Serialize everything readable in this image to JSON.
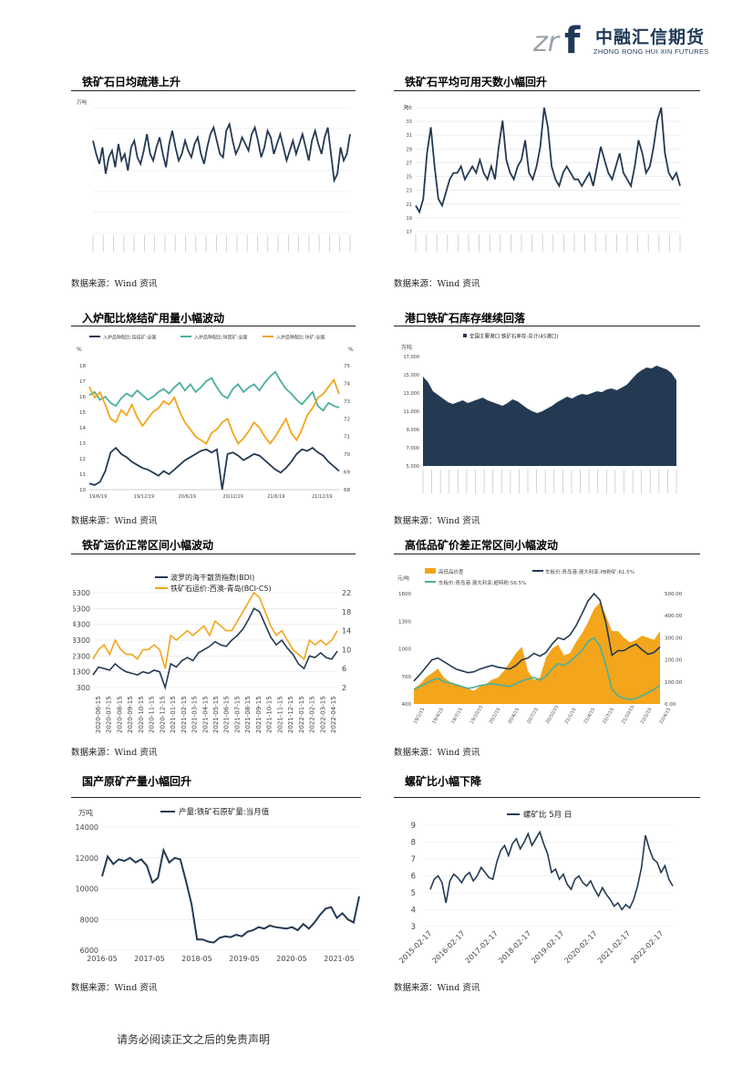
{
  "header": {
    "logo_cn": "中融汇信期货",
    "logo_en": "ZHONG RONG HUI XIN FUTURES",
    "logo_mark": "zrf"
  },
  "footer": {
    "disclaimer": "请务必阅读正文之后的免责声明"
  },
  "panels": [
    {
      "title": "铁矿石日均疏港上升",
      "source": "数据来源：Wind 资讯"
    },
    {
      "title": "铁矿石平均可用天数小幅回升",
      "source": "数据来源：Wind 资讯"
    },
    {
      "title": "入炉配比烧结矿用量小幅波动",
      "source": "数据来源：Wind 资讯"
    },
    {
      "title": "港口铁矿石库存继续回落",
      "source": "数据来源：Wind 资讯"
    },
    {
      "title": "铁矿运价正常区间小幅波动",
      "source": "数据来源：Wind 资讯"
    },
    {
      "title": "高低品矿价差正常区间小幅波动",
      "source": "数据来源：Wind 资讯"
    },
    {
      "title": "国产原矿产量小幅回升",
      "source": "数据来源：Wind 资讯"
    },
    {
      "title": "螺矿比小幅下降",
      "source": "数据来源：Wind 资讯"
    }
  ],
  "colors": {
    "navy": "#243a53",
    "teal": "#4aaf9e",
    "orange": "#f3a51b",
    "grid": "#e4e4e4"
  },
  "chart_data": [
    {
      "type": "line",
      "ylabel": "万吨",
      "series": [
        {
          "values": [
            320,
            300,
            285,
            310,
            270,
            295,
            305,
            280,
            315,
            290,
            300,
            275,
            310,
            320,
            295,
            285,
            305,
            330,
            300,
            290,
            310,
            325,
            300,
            280,
            315,
            335,
            310,
            290,
            300,
            320,
            305,
            295,
            315,
            325,
            300,
            285,
            310,
            330,
            340,
            320,
            300,
            295,
            335,
            345,
            320,
            300,
            310,
            325,
            315,
            305,
            330,
            340,
            320,
            295,
            310,
            335,
            325,
            300,
            315,
            330,
            310,
            290,
            305,
            320,
            300,
            315,
            330,
            310,
            290,
            320,
            335,
            315,
            300,
            325,
            340,
            300,
            260,
            270,
            310,
            290,
            300,
            330
          ]
        }
      ],
      "ylim": [
        180,
        370
      ]
    },
    {
      "type": "line",
      "ylabel": "天",
      "y_ticks": [
        "17",
        "19",
        "21",
        "23",
        "25",
        "27",
        "29",
        "31",
        "33",
        "35"
      ],
      "series": [
        {
          "values": [
            21,
            20,
            22,
            29,
            33,
            27,
            22,
            21,
            23,
            25,
            26,
            26,
            27,
            25,
            26,
            27,
            26,
            28,
            26,
            25,
            27,
            25,
            30,
            34,
            28,
            26,
            25,
            27,
            28,
            31,
            26,
            25,
            27,
            30,
            36,
            33,
            27,
            25,
            24,
            26,
            27,
            26,
            25,
            25,
            24,
            25,
            26,
            24,
            27,
            30,
            28,
            26,
            25,
            27,
            29,
            26,
            25,
            24,
            27,
            31,
            29,
            26,
            27,
            30,
            34,
            36,
            29,
            26,
            25,
            26,
            24
          ]
        }
      ],
      "ylim": [
        17,
        36
      ]
    },
    {
      "type": "line",
      "ylabel_left": "%",
      "ylabel_right": "%",
      "x_ticks": [
        "19/6/19",
        "19/12/19",
        "20/6/19",
        "20/12/19",
        "21/6/19",
        "21/12/19"
      ],
      "y_ticks_left": [
        "10",
        "11",
        "12",
        "13",
        "14",
        "15",
        "16",
        "17",
        "18"
      ],
      "y_ticks_right": [
        "68",
        "69",
        "70",
        "71",
        "72",
        "73",
        "74",
        "75"
      ],
      "series": [
        {
          "name": "入炉品种配比:烧结矿:全国",
          "axis": "left",
          "values": [
            10.4,
            10.3,
            10.5,
            11.2,
            12.4,
            12.7,
            12.3,
            12.1,
            11.8,
            11.6,
            11.4,
            11.3,
            11.1,
            10.9,
            11.2,
            11.0,
            11.3,
            11.6,
            11.9,
            12.1,
            12.3,
            12.5,
            12.6,
            12.4,
            12.6,
            10.0,
            12.3,
            12.4,
            12.2,
            11.9,
            12.1,
            12.3,
            12.2,
            11.9,
            11.6,
            11.3,
            11.1,
            11.4,
            11.8,
            12.3,
            12.6,
            12.5,
            12.7,
            12.4,
            12.2,
            11.8,
            11.5,
            11.2
          ]
        },
        {
          "name": "入炉品种配比:球团矿:全国",
          "axis": "left",
          "values": [
            16.1,
            16.3,
            15.8,
            16.0,
            15.6,
            15.4,
            15.9,
            16.2,
            16.0,
            16.4,
            16.1,
            15.8,
            16.0,
            16.3,
            16.5,
            16.2,
            16.6,
            16.9,
            16.4,
            16.8,
            16.3,
            16.6,
            17.0,
            17.2,
            16.6,
            16.1,
            15.9,
            16.5,
            16.8,
            16.3,
            16.6,
            16.8,
            16.4,
            16.9,
            17.3,
            17.6,
            17.0,
            16.5,
            16.2,
            15.8,
            15.5,
            15.9,
            16.3,
            15.4,
            15.1,
            15.6,
            15.4,
            15.3
          ]
        },
        {
          "name": "入炉品种配比:块矿:全国",
          "axis": "right",
          "values": [
            73.8,
            73.2,
            73.5,
            72.8,
            72.0,
            71.8,
            72.5,
            72.2,
            72.8,
            72.1,
            71.6,
            72.0,
            72.4,
            72.6,
            73.0,
            72.8,
            73.2,
            72.4,
            71.8,
            71.4,
            71.0,
            70.8,
            70.6,
            71.2,
            71.4,
            71.8,
            72.0,
            71.2,
            70.6,
            70.9,
            71.3,
            71.8,
            71.5,
            71.0,
            70.6,
            71.0,
            71.5,
            72.0,
            71.2,
            70.8,
            71.4,
            72.2,
            72.6,
            73.2,
            73.4,
            73.8,
            74.2,
            73.4
          ]
        }
      ]
    },
    {
      "type": "area",
      "ylabel": "万吨",
      "legend": [
        "全国主要港口:铁矿石库存:总计(45港口)"
      ],
      "y_ticks": [
        "5,000",
        "7,000",
        "9,000",
        "11,000",
        "13,000",
        "15,000",
        "17,000"
      ],
      "series": [
        {
          "name": "全国主要港口:铁矿石库存:总计(45港口)",
          "values": [
            14800,
            14200,
            13200,
            12800,
            12400,
            12000,
            11800,
            12000,
            12200,
            11900,
            12100,
            12300,
            12500,
            12200,
            12000,
            11800,
            11600,
            11900,
            12300,
            12100,
            11700,
            11300,
            11000,
            10800,
            11000,
            11300,
            11600,
            12000,
            12300,
            12600,
            12400,
            12700,
            12900,
            12800,
            13000,
            13200,
            13100,
            13400,
            13500,
            13300,
            13600,
            13900,
            14500,
            15100,
            15500,
            15800,
            15700,
            16000,
            15800,
            15600,
            15200,
            14400
          ]
        }
      ],
      "ylim": [
        5000,
        17000
      ]
    },
    {
      "type": "line",
      "x_ticks": [
        "2020-06-15",
        "2020-07-15",
        "2020-08-15",
        "2020-09-15",
        "2020-10-15",
        "2020-11-15",
        "2020-12-15",
        "2021-01-15",
        "2021-02-15",
        "2021-03-15",
        "2021-04-15",
        "2021-05-15",
        "2021-06-15",
        "2021-07-15",
        "2021-08-15",
        "2021-09-15",
        "2021-10-15",
        "2021-11-15",
        "2021-12-15",
        "2022-01-15",
        "2022-02-15",
        "2022-03-15",
        "2022-04-15"
      ],
      "y_ticks_left": [
        "300",
        "1300",
        "2300",
        "3300",
        "4300",
        "5300",
        "6300"
      ],
      "y_ticks_right": [
        "2",
        "6",
        "10",
        "14",
        "18",
        "22"
      ],
      "series": [
        {
          "name": "波罗的海干散货指数(BDI)",
          "axis": "left",
          "values": [
            1100,
            1600,
            1500,
            1400,
            1800,
            1500,
            1300,
            1200,
            1100,
            1300,
            1200,
            1400,
            1300,
            300,
            1800,
            1600,
            2000,
            2200,
            2000,
            2500,
            2700,
            2900,
            3200,
            3000,
            2900,
            3300,
            3600,
            4000,
            4600,
            5300,
            5100,
            4300,
            3500,
            3000,
            3300,
            2800,
            2400,
            1800,
            1500,
            2300,
            2200,
            2500,
            2200,
            2100,
            2600
          ]
        },
        {
          "name": "铁矿石运价:西澳-青岛(BCI-C5)",
          "axis": "right",
          "values": [
            8,
            10,
            11,
            9,
            12,
            10,
            9,
            9,
            8,
            10,
            10,
            11,
            10,
            6,
            13,
            12,
            13,
            14,
            13,
            14,
            15,
            13,
            16,
            15,
            14,
            14,
            16,
            18,
            20,
            22,
            21,
            18,
            15,
            13,
            14,
            12,
            10,
            9,
            8,
            12,
            11,
            12,
            11,
            12,
            14
          ]
        }
      ]
    },
    {
      "type": "line",
      "ylabel": "元/吨",
      "x_ticks": [
        "19/1/15",
        "19/4/15",
        "19/7/15",
        "19/10/15",
        "20/1/15",
        "20/4/15",
        "20/7/15",
        "20/10/15",
        "21/1/15",
        "21/4/15",
        "21/7/15",
        "21/10/15",
        "22/1/15",
        "22/4/15"
      ],
      "y_ticks_left": [
        "400",
        "700",
        "1000",
        "1300",
        "1600"
      ],
      "y_ticks_right": [
        "0.00",
        "100.00",
        "200.00",
        "300.00",
        "400.00",
        "500.00"
      ],
      "series": [
        {
          "name": "高低品价差",
          "axis": "right",
          "values": [
            70,
            90,
            120,
            140,
            160,
            120,
            100,
            90,
            80,
            70,
            60,
            80,
            90,
            110,
            120,
            150,
            190,
            230,
            260,
            150,
            110,
            120,
            210,
            250,
            270,
            220,
            230,
            280,
            320,
            370,
            430,
            460,
            400,
            330,
            330,
            300,
            280,
            290,
            310,
            300,
            290,
            330
          ]
        },
        {
          "name": "车板价:青岛港:澳大利亚:PB粉矿:61.5%",
          "axis": "left",
          "values": [
            650,
            720,
            800,
            880,
            900,
            860,
            820,
            780,
            760,
            740,
            750,
            780,
            800,
            820,
            800,
            790,
            780,
            820,
            880,
            900,
            950,
            920,
            960,
            1050,
            1120,
            1100,
            1150,
            1250,
            1380,
            1520,
            1600,
            1530,
            1280,
            930,
            980,
            980,
            1020,
            1050,
            990,
            940,
            960,
            1020
          ]
        },
        {
          "name": "车板价:青岛港:澳大利亚:超特粉:56.5%",
          "axis": "left",
          "values": [
            560,
            590,
            620,
            660,
            680,
            640,
            630,
            610,
            590,
            570,
            580,
            600,
            610,
            620,
            610,
            600,
            590,
            620,
            650,
            670,
            690,
            660,
            700,
            780,
            840,
            820,
            860,
            920,
            980,
            1080,
            1120,
            1030,
            820,
            560,
            490,
            460,
            450,
            460,
            490,
            520,
            560,
            600
          ]
        }
      ]
    },
    {
      "type": "line",
      "ylabel": "万吨",
      "x_ticks": [
        "2016-05",
        "2017-05",
        "2018-05",
        "2019-05",
        "2020-05",
        "2021-05"
      ],
      "y_ticks": [
        "6000",
        "8000",
        "10000",
        "12000",
        "14000"
      ],
      "series": [
        {
          "name": "产量:铁矿石原矿量:当月值",
          "values": [
            10800,
            12100,
            11600,
            11900,
            11800,
            12000,
            11700,
            11900,
            11500,
            10400,
            10700,
            12500,
            11700,
            12000,
            11900,
            10500,
            9000,
            6700,
            6700,
            6550,
            6500,
            6800,
            6900,
            6850,
            7000,
            6900,
            7200,
            7300,
            7500,
            7400,
            7600,
            7500,
            7450,
            7400,
            7500,
            7300,
            7700,
            7400,
            7800,
            8300,
            8700,
            8800,
            8100,
            8400,
            8000,
            7800,
            9500
          ]
        }
      ],
      "ylim": [
        6000,
        14000
      ]
    },
    {
      "type": "line",
      "legend": [
        "螺矿比  5月 日"
      ],
      "x_ticks": [
        "2015-02-17",
        "2016-02-17",
        "2017-02-17",
        "2018-02-17",
        "2019-02-17",
        "2020-02-17",
        "2021-02-17",
        "2022-02-17"
      ],
      "y_ticks": [
        "3",
        "4",
        "5",
        "6",
        "7",
        "8",
        "9"
      ],
      "series": [
        {
          "name": "螺矿比  5月 日",
          "values": [
            5.2,
            5.8,
            6.0,
            5.6,
            4.4,
            5.7,
            6.1,
            5.9,
            5.6,
            6.0,
            6.2,
            5.7,
            6.0,
            6.5,
            6.2,
            5.9,
            5.8,
            6.8,
            7.5,
            7.8,
            7.2,
            7.9,
            8.2,
            7.6,
            8.0,
            8.5,
            7.8,
            8.2,
            8.6,
            7.9,
            7.3,
            6.2,
            6.4,
            5.8,
            6.1,
            5.5,
            5.2,
            5.8,
            6.0,
            5.6,
            5.4,
            5.7,
            5.2,
            4.8,
            5.3,
            4.9,
            4.6,
            4.2,
            4.4,
            4.0,
            4.3,
            4.1,
            4.6,
            5.4,
            6.5,
            8.4,
            7.6,
            7.0,
            6.8,
            6.2,
            6.6,
            5.8,
            5.4
          ]
        }
      ],
      "ylim": [
        3,
        9
      ]
    }
  ]
}
